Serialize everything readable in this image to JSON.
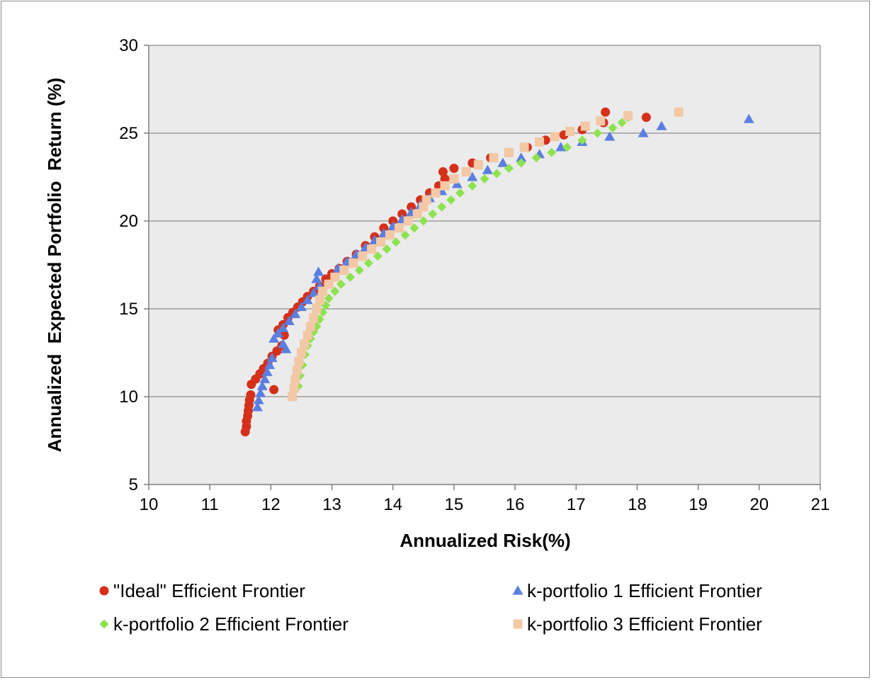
{
  "chart_data": {
    "type": "scatter",
    "title": "",
    "xlabel": "Annualized Risk(%)",
    "ylabel": "Annualized  Expected Portfolio  Return (%)",
    "xlim": [
      10,
      21
    ],
    "ylim": [
      5,
      30
    ],
    "xticks": [
      10,
      11,
      12,
      13,
      14,
      15,
      16,
      17,
      18,
      19,
      20,
      21
    ],
    "yticks": [
      5,
      10,
      15,
      20,
      25,
      30
    ],
    "grid": "horizontal",
    "legend_position": "bottom",
    "series": [
      {
        "name": "\"Ideal\" Efficient Frontier",
        "marker": "circle",
        "color": "#d5301a",
        "points": [
          [
            11.58,
            8.0
          ],
          [
            11.6,
            8.3
          ],
          [
            11.6,
            8.6
          ],
          [
            11.62,
            8.9
          ],
          [
            11.63,
            9.2
          ],
          [
            11.64,
            9.5
          ],
          [
            11.65,
            9.8
          ],
          [
            11.67,
            10.1
          ],
          [
            12.05,
            10.4
          ],
          [
            11.68,
            10.7
          ],
          [
            11.75,
            11.0
          ],
          [
            11.82,
            11.3
          ],
          [
            11.88,
            11.6
          ],
          [
            11.95,
            11.9
          ],
          [
            12.02,
            12.3
          ],
          [
            12.1,
            12.6
          ],
          [
            12.18,
            12.9
          ],
          [
            12.22,
            13.5
          ],
          [
            12.12,
            13.8
          ],
          [
            12.2,
            14.1
          ],
          [
            12.28,
            14.5
          ],
          [
            12.36,
            14.8
          ],
          [
            12.44,
            15.1
          ],
          [
            12.52,
            15.4
          ],
          [
            12.6,
            15.7
          ],
          [
            12.7,
            16.0
          ],
          [
            12.8,
            16.3
          ],
          [
            12.9,
            16.7
          ],
          [
            13.0,
            17.0
          ],
          [
            13.12,
            17.3
          ],
          [
            13.25,
            17.7
          ],
          [
            13.4,
            18.1
          ],
          [
            13.55,
            18.6
          ],
          [
            13.7,
            19.1
          ],
          [
            13.85,
            19.6
          ],
          [
            14.0,
            20.0
          ],
          [
            14.15,
            20.4
          ],
          [
            14.3,
            20.8
          ],
          [
            14.45,
            21.2
          ],
          [
            14.6,
            21.6
          ],
          [
            14.75,
            22.0
          ],
          [
            14.85,
            22.4
          ],
          [
            14.82,
            22.8
          ],
          [
            15.0,
            23.0
          ],
          [
            15.3,
            23.3
          ],
          [
            15.6,
            23.6
          ],
          [
            15.9,
            23.9
          ],
          [
            16.2,
            24.2
          ],
          [
            16.5,
            24.6
          ],
          [
            16.8,
            24.9
          ],
          [
            17.1,
            25.2
          ],
          [
            17.45,
            25.6
          ],
          [
            17.48,
            26.2
          ],
          [
            18.15,
            25.9
          ]
        ]
      },
      {
        "name": "k-portfolio 1 Efficient Frontier",
        "marker": "triangle",
        "color": "#5b7fe0",
        "points": [
          [
            11.78,
            9.4
          ],
          [
            11.8,
            9.8
          ],
          [
            11.83,
            10.2
          ],
          [
            11.86,
            10.6
          ],
          [
            11.9,
            11.0
          ],
          [
            11.94,
            11.4
          ],
          [
            11.98,
            11.8
          ],
          [
            12.02,
            12.2
          ],
          [
            12.25,
            12.7
          ],
          [
            12.2,
            13.0
          ],
          [
            12.05,
            13.3
          ],
          [
            12.12,
            13.6
          ],
          [
            12.2,
            13.9
          ],
          [
            12.3,
            14.3
          ],
          [
            12.4,
            14.7
          ],
          [
            12.5,
            15.1
          ],
          [
            12.6,
            15.5
          ],
          [
            12.7,
            15.9
          ],
          [
            12.8,
            16.3
          ],
          [
            12.75,
            16.7
          ],
          [
            12.78,
            17.1
          ],
          [
            13.1,
            17.3
          ],
          [
            13.25,
            17.7
          ],
          [
            13.4,
            18.1
          ],
          [
            13.55,
            18.5
          ],
          [
            13.7,
            18.9
          ],
          [
            13.85,
            19.3
          ],
          [
            14.0,
            19.7
          ],
          [
            14.15,
            20.1
          ],
          [
            14.3,
            20.5
          ],
          [
            14.45,
            20.9
          ],
          [
            14.6,
            21.3
          ],
          [
            14.8,
            21.7
          ],
          [
            15.05,
            22.1
          ],
          [
            15.3,
            22.5
          ],
          [
            15.55,
            22.9
          ],
          [
            15.8,
            23.3
          ],
          [
            16.1,
            23.6
          ],
          [
            16.4,
            23.8
          ],
          [
            16.75,
            24.2
          ],
          [
            17.1,
            24.5
          ],
          [
            17.55,
            24.8
          ],
          [
            18.1,
            25.0
          ],
          [
            18.4,
            25.4
          ],
          [
            19.83,
            25.8
          ]
        ]
      },
      {
        "name": "k-portfolio 2 Efficient Frontier",
        "marker": "diamond",
        "color": "#8de34f",
        "points": [
          [
            12.45,
            10.6
          ],
          [
            12.48,
            11.2
          ],
          [
            12.52,
            11.8
          ],
          [
            12.56,
            12.4
          ],
          [
            12.6,
            12.9
          ],
          [
            12.65,
            13.3
          ],
          [
            12.7,
            13.7
          ],
          [
            12.75,
            14.0
          ],
          [
            12.8,
            14.4
          ],
          [
            12.85,
            14.8
          ],
          [
            12.9,
            15.2
          ],
          [
            12.95,
            15.6
          ],
          [
            13.05,
            16.0
          ],
          [
            13.15,
            16.4
          ],
          [
            13.3,
            16.8
          ],
          [
            13.45,
            17.2
          ],
          [
            13.6,
            17.6
          ],
          [
            13.75,
            18.0
          ],
          [
            13.9,
            18.4
          ],
          [
            14.05,
            18.8
          ],
          [
            14.2,
            19.2
          ],
          [
            14.35,
            19.6
          ],
          [
            14.5,
            20.0
          ],
          [
            14.65,
            20.4
          ],
          [
            14.8,
            20.8
          ],
          [
            14.95,
            21.2
          ],
          [
            15.1,
            21.6
          ],
          [
            15.3,
            22.0
          ],
          [
            15.5,
            22.4
          ],
          [
            15.7,
            22.7
          ],
          [
            15.9,
            23.0
          ],
          [
            16.1,
            23.3
          ],
          [
            16.35,
            23.6
          ],
          [
            16.6,
            23.9
          ],
          [
            16.85,
            24.2
          ],
          [
            17.1,
            24.6
          ],
          [
            17.35,
            25.0
          ],
          [
            17.6,
            25.3
          ],
          [
            17.75,
            25.6
          ],
          [
            17.85,
            25.9
          ]
        ]
      },
      {
        "name": "k-portfolio 3 Efficient Frontier",
        "marker": "square",
        "color": "#f2c8a5",
        "points": [
          [
            12.35,
            10.0
          ],
          [
            12.38,
            10.5
          ],
          [
            12.4,
            11.0
          ],
          [
            12.43,
            11.5
          ],
          [
            12.46,
            12.0
          ],
          [
            12.5,
            12.5
          ],
          [
            12.55,
            13.0
          ],
          [
            12.6,
            13.5
          ],
          [
            12.65,
            14.0
          ],
          [
            12.7,
            14.5
          ],
          [
            12.75,
            15.0
          ],
          [
            12.8,
            15.5
          ],
          [
            12.85,
            16.0
          ],
          [
            12.95,
            16.4
          ],
          [
            13.05,
            16.8
          ],
          [
            13.2,
            17.2
          ],
          [
            13.35,
            17.6
          ],
          [
            13.5,
            18.0
          ],
          [
            13.65,
            18.4
          ],
          [
            13.8,
            18.8
          ],
          [
            13.95,
            19.2
          ],
          [
            14.1,
            19.6
          ],
          [
            14.25,
            20.0
          ],
          [
            14.4,
            20.4
          ],
          [
            14.5,
            20.8
          ],
          [
            14.55,
            21.2
          ],
          [
            14.7,
            21.6
          ],
          [
            14.85,
            22.0
          ],
          [
            15.0,
            22.4
          ],
          [
            15.2,
            22.8
          ],
          [
            15.4,
            23.2
          ],
          [
            15.65,
            23.6
          ],
          [
            15.9,
            23.9
          ],
          [
            16.15,
            24.2
          ],
          [
            16.4,
            24.5
          ],
          [
            16.65,
            24.8
          ],
          [
            16.9,
            25.1
          ],
          [
            17.15,
            25.4
          ],
          [
            17.4,
            25.7
          ],
          [
            17.85,
            26.0
          ],
          [
            18.68,
            26.2
          ]
        ]
      }
    ]
  }
}
